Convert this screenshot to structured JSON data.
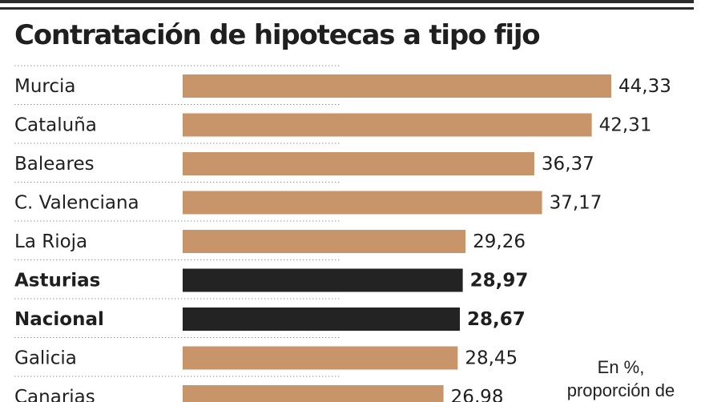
{
  "chart_data": {
    "type": "bar",
    "orientation": "horizontal",
    "title": "Contratación de hipotecas a tipo fijo",
    "categories": [
      "Murcia",
      "Cataluña",
      "Baleares",
      "C. Valenciana",
      "La Rioja",
      "Asturias",
      "Nacional",
      "Galicia",
      "Canarias"
    ],
    "values": [
      44.33,
      42.31,
      36.37,
      37.17,
      29.26,
      28.97,
      28.67,
      28.45,
      26.98
    ],
    "value_labels": [
      "44,33",
      "42,31",
      "36,37",
      "37,17",
      "29,26",
      "28,97",
      "28,67",
      "28,45",
      "26,98"
    ],
    "highlighted": [
      "Asturias",
      "Nacional"
    ],
    "note_lines": [
      "En %,",
      "proporción de"
    ],
    "colors": {
      "bar": "#c8956a",
      "highlight": "#232323",
      "rule": "#2b2b2b"
    },
    "grid": false
  }
}
